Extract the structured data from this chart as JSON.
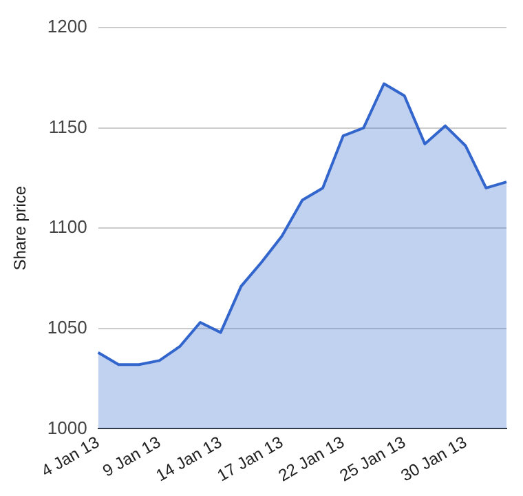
{
  "chart_data": {
    "type": "area",
    "ylabel": "Share price",
    "categories": [
      "4 Jan 13",
      null,
      null,
      "9 Jan 13",
      null,
      null,
      "14 Jan 13",
      null,
      null,
      "17 Jan 13",
      null,
      null,
      "22 Jan 13",
      null,
      null,
      "25 Jan 13",
      null,
      null,
      "30 Jan 13",
      null,
      null
    ],
    "series": [
      {
        "color": "#3366cc",
        "values": [
          1038,
          1032,
          1032,
          1034,
          1041,
          1053,
          1048,
          1071,
          1083,
          1096,
          1114,
          1120,
          1146,
          1150,
          1172,
          1166,
          1142,
          1151,
          1141,
          1120,
          1123
        ]
      }
    ],
    "ylim": [
      1000,
      1200
    ],
    "yticks": [
      1000,
      1050,
      1100,
      1150,
      1200
    ],
    "grid": "y",
    "legend": false,
    "marker": "none",
    "line_style": "solid"
  }
}
